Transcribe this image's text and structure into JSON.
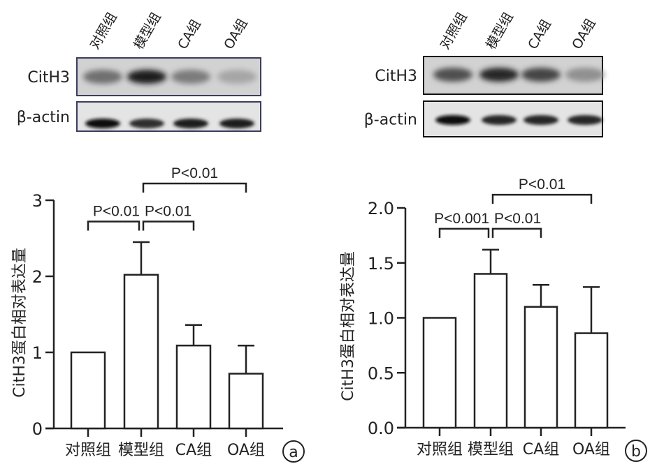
{
  "blots": [
    {
      "panel": "a",
      "lanes": [
        "对照组",
        "模型组",
        "CA组",
        "OA组"
      ],
      "rows": [
        {
          "label": "CitH3",
          "intensity": [
            0.55,
            0.95,
            0.5,
            0.3
          ]
        },
        {
          "label": "β-actin",
          "intensity": [
            1.0,
            0.85,
            0.95,
            0.95
          ]
        }
      ]
    },
    {
      "panel": "b",
      "lanes": [
        "对照组",
        "模型组",
        "CA组",
        "OA组"
      ],
      "rows": [
        {
          "label": "CitH3",
          "intensity": [
            0.7,
            0.9,
            0.75,
            0.4
          ]
        },
        {
          "label": "β-actin",
          "intensity": [
            1.0,
            0.9,
            0.9,
            0.9
          ]
        }
      ]
    }
  ],
  "chart_data": [
    {
      "type": "bar",
      "panel_label": "a",
      "categories": [
        "对照组",
        "模型组",
        "CA组",
        "OA组"
      ],
      "values": [
        1.0,
        2.02,
        1.09,
        0.72
      ],
      "error_upper": [
        0,
        0.43,
        0.27,
        0.37
      ],
      "ylabel": "CitH3蛋白相对表达量",
      "xlabel": "",
      "ylim": [
        0,
        3
      ],
      "yticks": [
        "0",
        "1",
        "2",
        "3"
      ],
      "tick_values": [
        0,
        1,
        2,
        3
      ],
      "grid": false,
      "bar_fill": "#ffffff",
      "stroke": "#222222",
      "significance": [
        {
          "from": 0,
          "to": 1,
          "label": "P<0.01",
          "level": 2.72
        },
        {
          "from": 1,
          "to": 2,
          "label": "P<0.01",
          "level": 2.72
        },
        {
          "from": 1,
          "to": 3,
          "label": "P<0.01",
          "level": 3.22
        }
      ]
    },
    {
      "type": "bar",
      "panel_label": "b",
      "categories": [
        "对照组",
        "模型组",
        "CA组",
        "OA组"
      ],
      "values": [
        1.0,
        1.4,
        1.1,
        0.86
      ],
      "error_upper": [
        0,
        0.22,
        0.2,
        0.42
      ],
      "ylabel": "CitH3蛋白相对表达量",
      "xlabel": "",
      "ylim": [
        0,
        2.0
      ],
      "yticks": [
        "0.0",
        "0.5",
        "1.0",
        "1.5",
        "2.0"
      ],
      "tick_values": [
        0,
        0.5,
        1.0,
        1.5,
        2.0
      ],
      "grid": false,
      "bar_fill": "#ffffff",
      "stroke": "#222222",
      "significance": [
        {
          "from": 0,
          "to": 1,
          "label": "P<0.001",
          "level": 1.81
        },
        {
          "from": 1,
          "to": 2,
          "label": "P<0.01",
          "level": 1.81
        },
        {
          "from": 1,
          "to": 3,
          "label": "P<0.01",
          "level": 2.12
        }
      ]
    }
  ]
}
